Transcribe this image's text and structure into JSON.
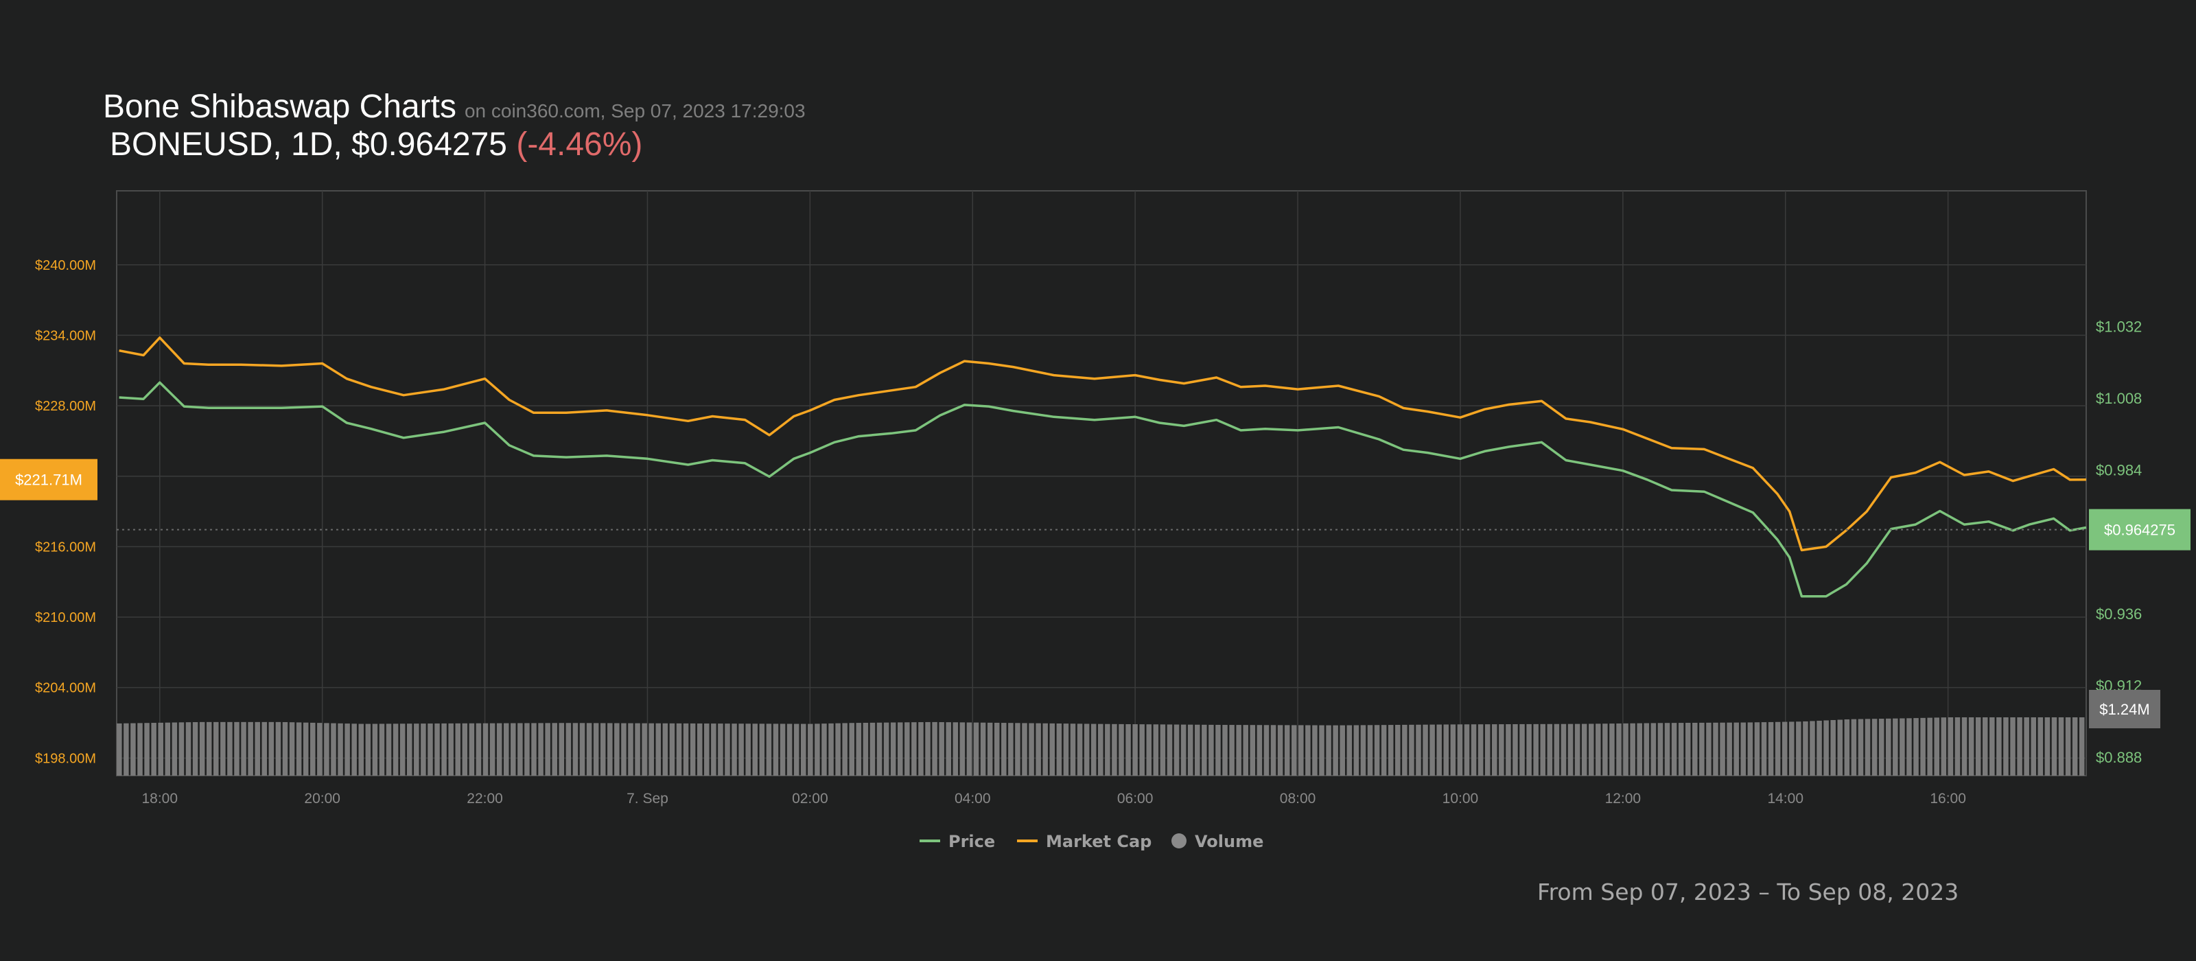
{
  "header": {
    "title": "Bone Shibaswap Charts",
    "source": "on coin360.com, Sep 07, 2023 17:29:03",
    "symbol_line": "BONEUSD, 1D, $0.964275",
    "change": "(-4.46%)"
  },
  "footer": {
    "range": "From Sep 07, 2023 – To Sep 08, 2023"
  },
  "colors": {
    "background": "#1f2020",
    "price": "#7dc47d",
    "market_cap": "#f5a623",
    "volume": "#7a7a7a",
    "grid": "#3a3b3b",
    "change_negative": "#e06a6a"
  },
  "chart_data": {
    "type": "line",
    "x_ticks": [
      "18:00",
      "20:00",
      "22:00",
      "7. Sep",
      "02:00",
      "04:00",
      "06:00",
      "08:00",
      "10:00",
      "12:00",
      "14:00",
      "16:00"
    ],
    "x_tick_hours": [
      18,
      20,
      22,
      24,
      26,
      28,
      30,
      32,
      34,
      36,
      38,
      40
    ],
    "x_range_hours": [
      17.47,
      41.7
    ],
    "left_axis": {
      "label": "",
      "ticks": [
        "$198.00M",
        "$204.00M",
        "$210.00M",
        "$216.00M",
        "$228.00M",
        "$234.00M",
        "$240.00M"
      ],
      "tick_values": [
        198,
        204,
        210,
        216,
        228,
        234,
        240
      ],
      "range": [
        196.5,
        246.3
      ],
      "unit": "M USD"
    },
    "right_axis": {
      "label": "",
      "ticks": [
        "$0.888",
        "$0.912",
        "$0.936",
        "$0.984",
        "$1.008",
        "$1.032"
      ],
      "tick_values": [
        0.888,
        0.912,
        0.936,
        0.984,
        1.008,
        1.032
      ],
      "range": [
        0.882,
        1.0776
      ]
    },
    "current_markers": {
      "market_cap_label": "$221.71M",
      "market_cap_value": 221.71,
      "price_label": "$0.964275",
      "price_value": 0.964275,
      "volume_label": "$1.24M"
    },
    "legend": {
      "position": "bottom-center",
      "items": [
        {
          "name": "Price",
          "kind": "line"
        },
        {
          "name": "Market Cap",
          "kind": "line"
        },
        {
          "name": "Volume",
          "kind": "circle"
        }
      ]
    },
    "series": [
      {
        "name": "Price",
        "axis": "right",
        "x_hours": [
          17.5,
          17.8,
          18.0,
          18.3,
          18.6,
          19.0,
          19.5,
          20.0,
          20.3,
          20.6,
          21.0,
          21.5,
          22.0,
          22.3,
          22.6,
          23.0,
          23.5,
          24.0,
          24.5,
          24.8,
          25.2,
          25.5,
          25.8,
          26.0,
          26.3,
          26.6,
          27.0,
          27.3,
          27.6,
          27.9,
          28.2,
          28.5,
          29.0,
          29.5,
          30.0,
          30.3,
          30.6,
          31.0,
          31.3,
          31.6,
          32.0,
          32.5,
          33.0,
          33.3,
          33.6,
          34.0,
          34.3,
          34.6,
          35.0,
          35.3,
          35.6,
          36.0,
          36.3,
          36.6,
          37.0,
          37.3,
          37.6,
          37.9,
          38.05,
          38.2,
          38.5,
          38.75,
          39.0,
          39.3,
          39.6,
          39.9,
          40.2,
          40.5,
          40.8,
          41.0,
          41.3,
          41.5,
          41.7
        ],
        "values": [
          1.0085,
          1.008,
          1.0135,
          1.0055,
          1.005,
          1.005,
          1.005,
          1.0055,
          1.0,
          0.998,
          0.995,
          0.997,
          1.0,
          0.9925,
          0.989,
          0.9885,
          0.989,
          0.988,
          0.986,
          0.9875,
          0.9865,
          0.982,
          0.988,
          0.99,
          0.9935,
          0.9955,
          0.9965,
          0.9975,
          1.0025,
          1.006,
          1.0055,
          1.004,
          1.002,
          1.001,
          1.002,
          1.0,
          0.999,
          1.001,
          0.9975,
          0.998,
          0.9975,
          0.9985,
          0.9945,
          0.991,
          0.99,
          0.988,
          0.9905,
          0.992,
          0.9935,
          0.9875,
          0.986,
          0.984,
          0.981,
          0.9775,
          0.977,
          0.9735,
          0.97,
          0.961,
          0.955,
          0.942,
          0.942,
          0.946,
          0.953,
          0.9645,
          0.966,
          0.9705,
          0.966,
          0.967,
          0.964,
          0.966,
          0.968,
          0.964,
          0.965
        ]
      },
      {
        "name": "Market Cap",
        "axis": "left",
        "x_hours": [
          17.5,
          17.8,
          18.0,
          18.3,
          18.6,
          19.0,
          19.5,
          20.0,
          20.3,
          20.6,
          21.0,
          21.5,
          22.0,
          22.3,
          22.6,
          23.0,
          23.5,
          24.0,
          24.5,
          24.8,
          25.2,
          25.5,
          25.8,
          26.0,
          26.3,
          26.6,
          27.0,
          27.3,
          27.6,
          27.9,
          28.2,
          28.5,
          29.0,
          29.5,
          30.0,
          30.3,
          30.6,
          31.0,
          31.3,
          31.6,
          32.0,
          32.5,
          33.0,
          33.3,
          33.6,
          34.0,
          34.3,
          34.6,
          35.0,
          35.3,
          35.6,
          36.0,
          36.3,
          36.6,
          37.0,
          37.3,
          37.6,
          37.9,
          38.05,
          38.2,
          38.5,
          38.75,
          39.0,
          39.3,
          39.6,
          39.9,
          40.2,
          40.5,
          40.8,
          41.0,
          41.3,
          41.5,
          41.7
        ],
        "values": [
          232.7,
          232.3,
          233.8,
          231.6,
          231.5,
          231.5,
          231.4,
          231.6,
          230.3,
          229.6,
          228.9,
          229.4,
          230.3,
          228.5,
          227.4,
          227.4,
          227.6,
          227.2,
          226.7,
          227.1,
          226.8,
          225.5,
          227.1,
          227.6,
          228.5,
          228.9,
          229.3,
          229.6,
          230.8,
          231.8,
          231.6,
          231.3,
          230.6,
          230.3,
          230.6,
          230.2,
          229.9,
          230.4,
          229.6,
          229.7,
          229.4,
          229.7,
          228.8,
          227.8,
          227.5,
          227.0,
          227.7,
          228.1,
          228.4,
          226.9,
          226.6,
          226.0,
          225.2,
          224.4,
          224.3,
          223.5,
          222.7,
          220.5,
          219.0,
          215.7,
          216.0,
          217.4,
          219.0,
          221.9,
          222.3,
          223.2,
          222.1,
          222.4,
          221.6,
          222.0,
          222.6,
          221.7,
          221.71
        ]
      },
      {
        "name": "Volume",
        "axis": "volume",
        "x_hours": [
          17.5,
          18.5,
          19.5,
          20.5,
          21.5,
          23.0,
          24.5,
          26.0,
          26.5,
          27.5,
          28.5,
          29.5,
          31.0,
          32.5,
          34.0,
          35.5,
          36.5,
          37.5,
          38.2,
          38.8,
          39.5,
          40.0,
          41.0,
          41.7
        ],
        "values": [
          1.11,
          1.14,
          1.14,
          1.1,
          1.11,
          1.12,
          1.11,
          1.1,
          1.12,
          1.14,
          1.12,
          1.1,
          1.08,
          1.07,
          1.09,
          1.1,
          1.12,
          1.13,
          1.15,
          1.2,
          1.22,
          1.24,
          1.24,
          1.24
        ]
      }
    ]
  }
}
